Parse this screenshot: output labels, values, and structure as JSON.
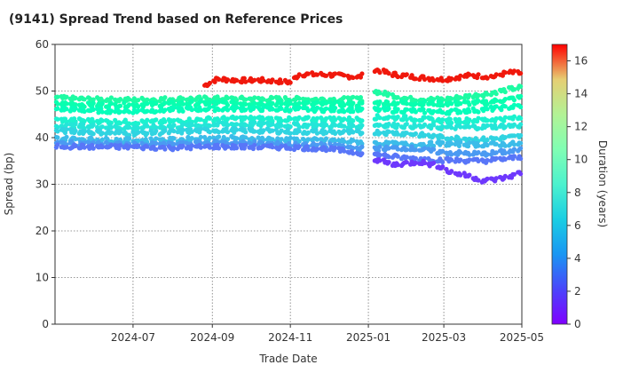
{
  "chart_data": {
    "type": "scatter",
    "title": "(9141)   Spread Trend based on Reference Prices",
    "xlabel": "Trade Date",
    "ylabel": "Spread (bp)",
    "xlim": [
      "2024-05-01",
      "2025-05-01"
    ],
    "ylim": [
      0,
      60
    ],
    "x_ticks": [
      "2024-07",
      "2024-09",
      "2024-11",
      "2025-01",
      "2025-03",
      "2025-05"
    ],
    "y_ticks": [
      0,
      10,
      20,
      30,
      40,
      50,
      60
    ],
    "grid": true,
    "colorbar": {
      "label": "Duration (years)",
      "range": [
        0,
        17
      ],
      "ticks": [
        0,
        2,
        4,
        6,
        8,
        10,
        12,
        14,
        16
      ],
      "colormap": "rainbow"
    },
    "series": [
      {
        "duration": 16.5,
        "points": [
          [
            "2024-08-26",
            51.2
          ],
          [
            "2024-09-05",
            52.6
          ],
          [
            "2024-09-20",
            52.3
          ],
          [
            "2024-10-10",
            52.3
          ],
          [
            "2024-11-01",
            51.9
          ],
          [
            "2024-11-08",
            53.6
          ],
          [
            "2024-12-01",
            53.5
          ],
          [
            "2024-12-25",
            53.0
          ],
          [
            "2025-01-05",
            54.7
          ],
          [
            "2025-01-20",
            53.6
          ],
          [
            "2025-02-10",
            52.9
          ],
          [
            "2025-03-01",
            52.5
          ],
          [
            "2025-03-20",
            53.3
          ],
          [
            "2025-04-10",
            53.1
          ],
          [
            "2025-04-20",
            54.0
          ],
          [
            "2025-04-30",
            53.8
          ]
        ]
      },
      {
        "duration": 9.5,
        "points": [
          [
            "2024-05-02",
            48.5
          ],
          [
            "2024-06-01",
            48.2
          ],
          [
            "2024-07-01",
            48.1
          ],
          [
            "2024-08-01",
            48.3
          ],
          [
            "2024-09-01",
            48.4
          ],
          [
            "2024-10-01",
            48.3
          ],
          [
            "2024-11-01",
            48.3
          ],
          [
            "2024-12-01",
            48.2
          ],
          [
            "2024-12-31",
            48.3
          ],
          [
            "2025-01-05",
            50.0
          ],
          [
            "2025-02-01",
            48.3
          ],
          [
            "2025-03-01",
            48.2
          ],
          [
            "2025-04-01",
            49.3
          ],
          [
            "2025-04-30",
            50.8
          ]
        ]
      },
      {
        "duration": 8.8,
        "points": [
          [
            "2024-05-02",
            47.3
          ],
          [
            "2024-06-01",
            47.0
          ],
          [
            "2024-07-01",
            47.0
          ],
          [
            "2024-08-01",
            47.3
          ],
          [
            "2024-09-01",
            47.4
          ],
          [
            "2024-10-01",
            47.4
          ],
          [
            "2024-11-01",
            47.3
          ],
          [
            "2024-12-01",
            47.2
          ],
          [
            "2024-12-31",
            47.1
          ],
          [
            "2025-01-05",
            47.5
          ],
          [
            "2025-02-01",
            47.4
          ],
          [
            "2025-03-01",
            47.3
          ],
          [
            "2025-04-01",
            47.5
          ],
          [
            "2025-04-30",
            48.6
          ]
        ]
      },
      {
        "duration": 8.1,
        "points": [
          [
            "2024-05-02",
            46.2
          ],
          [
            "2024-06-01",
            45.8
          ],
          [
            "2024-07-01",
            45.7
          ],
          [
            "2024-08-01",
            46.0
          ],
          [
            "2024-09-01",
            46.2
          ],
          [
            "2024-10-01",
            46.2
          ],
          [
            "2024-11-01",
            46.1
          ],
          [
            "2024-12-01",
            46.0
          ],
          [
            "2024-12-31",
            46.0
          ],
          [
            "2025-01-05",
            46.0
          ],
          [
            "2025-02-01",
            45.8
          ],
          [
            "2025-03-01",
            45.5
          ],
          [
            "2025-04-01",
            46.0
          ],
          [
            "2025-04-30",
            46.8
          ]
        ]
      },
      {
        "duration": 6.8,
        "points": [
          [
            "2024-05-02",
            43.8
          ],
          [
            "2024-06-01",
            43.6
          ],
          [
            "2024-07-01",
            43.3
          ],
          [
            "2024-08-01",
            43.5
          ],
          [
            "2024-09-01",
            44.0
          ],
          [
            "2024-10-01",
            44.1
          ],
          [
            "2024-11-01",
            43.9
          ],
          [
            "2024-12-01",
            44.0
          ],
          [
            "2024-12-31",
            43.9
          ],
          [
            "2025-01-05",
            44.4
          ],
          [
            "2025-02-01",
            44.2
          ],
          [
            "2025-03-01",
            43.6
          ],
          [
            "2025-04-01",
            43.8
          ],
          [
            "2025-04-30",
            44.2
          ]
        ]
      },
      {
        "duration": 6.1,
        "points": [
          [
            "2024-05-02",
            42.6
          ],
          [
            "2024-06-01",
            42.4
          ],
          [
            "2024-07-01",
            42.1
          ],
          [
            "2024-08-01",
            42.4
          ],
          [
            "2024-09-01",
            42.8
          ],
          [
            "2024-10-01",
            42.9
          ],
          [
            "2024-11-01",
            42.7
          ],
          [
            "2024-12-01",
            42.6
          ],
          [
            "2024-12-31",
            42.5
          ],
          [
            "2025-01-05",
            42.8
          ],
          [
            "2025-02-01",
            42.5
          ],
          [
            "2025-03-01",
            42.2
          ],
          [
            "2025-04-01",
            42.3
          ],
          [
            "2025-04-30",
            42.6
          ]
        ]
      },
      {
        "duration": 5.3,
        "points": [
          [
            "2024-05-02",
            41.5
          ],
          [
            "2024-06-01",
            41.2
          ],
          [
            "2024-07-01",
            40.9
          ],
          [
            "2024-08-01",
            41.2
          ],
          [
            "2024-09-01",
            41.6
          ],
          [
            "2024-10-01",
            41.5
          ],
          [
            "2024-11-01",
            41.3
          ],
          [
            "2024-12-01",
            41.2
          ],
          [
            "2024-12-31",
            41.0
          ],
          [
            "2025-01-05",
            41.2
          ],
          [
            "2025-02-01",
            40.9
          ],
          [
            "2025-03-01",
            40.0
          ],
          [
            "2025-04-01",
            39.6
          ],
          [
            "2025-04-30",
            40.3
          ]
        ]
      },
      {
        "duration": 4.5,
        "points": [
          [
            "2024-05-02",
            39.8
          ],
          [
            "2024-06-01",
            39.6
          ],
          [
            "2024-07-01",
            39.4
          ],
          [
            "2024-08-01",
            39.5
          ],
          [
            "2024-09-01",
            39.9
          ],
          [
            "2024-10-01",
            39.8
          ],
          [
            "2024-11-01",
            39.5
          ],
          [
            "2024-12-01",
            39.4
          ],
          [
            "2024-12-31",
            39.0
          ],
          [
            "2025-01-05",
            38.8
          ],
          [
            "2025-02-01",
            38.5
          ],
          [
            "2025-03-01",
            38.7
          ],
          [
            "2025-04-01",
            38.5
          ],
          [
            "2025-04-30",
            38.7
          ]
        ]
      },
      {
        "duration": 3.5,
        "points": [
          [
            "2024-05-02",
            38.8
          ],
          [
            "2024-06-01",
            38.7
          ],
          [
            "2024-07-01",
            38.5
          ],
          [
            "2024-08-01",
            38.5
          ],
          [
            "2024-09-01",
            38.9
          ],
          [
            "2024-10-01",
            38.8
          ],
          [
            "2024-11-01",
            38.5
          ],
          [
            "2024-12-01",
            38.3
          ],
          [
            "2024-12-31",
            37.5
          ],
          [
            "2025-01-05",
            37.6
          ],
          [
            "2025-02-01",
            37.8
          ],
          [
            "2025-03-01",
            36.8
          ],
          [
            "2025-04-01",
            36.5
          ],
          [
            "2025-04-30",
            37.3
          ]
        ]
      },
      {
        "duration": 2.6,
        "points": [
          [
            "2024-05-02",
            38.2
          ],
          [
            "2024-06-01",
            38.0
          ],
          [
            "2024-07-01",
            38.0
          ],
          [
            "2024-08-01",
            37.8
          ],
          [
            "2024-09-01",
            38.1
          ],
          [
            "2024-10-01",
            38.0
          ],
          [
            "2024-11-01",
            37.9
          ],
          [
            "2024-12-01",
            37.6
          ],
          [
            "2024-12-31",
            36.5
          ],
          [
            "2025-01-05",
            36.4
          ],
          [
            "2025-02-01",
            35.6
          ],
          [
            "2025-03-01",
            35.2
          ],
          [
            "2025-04-01",
            35.0
          ],
          [
            "2025-04-30",
            35.8
          ]
        ]
      },
      {
        "duration": 1.2,
        "points": [
          [
            "2025-01-05",
            35.5
          ],
          [
            "2025-01-20",
            34.2
          ],
          [
            "2025-02-10",
            34.8
          ],
          [
            "2025-02-27",
            33.8
          ],
          [
            "2025-03-05",
            32.7
          ],
          [
            "2025-03-20",
            31.8
          ],
          [
            "2025-04-01",
            30.8
          ],
          [
            "2025-04-10",
            31.0
          ],
          [
            "2025-04-20",
            31.5
          ],
          [
            "2025-04-30",
            32.5
          ]
        ]
      }
    ]
  }
}
